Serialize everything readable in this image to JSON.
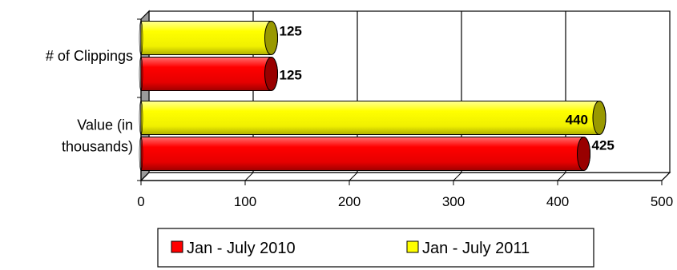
{
  "chart_data": {
    "type": "bar",
    "orientation": "horizontal",
    "categories": [
      "# of Clippings",
      "Value (in thousands)"
    ],
    "category_lines": [
      [
        "# of Clippings"
      ],
      [
        "Value (in",
        "thousands)"
      ]
    ],
    "series": [
      {
        "name": "Jan - July 2010",
        "values": [
          125,
          425
        ],
        "color": "#ff0000",
        "end_color": "#990000"
      },
      {
        "name": "Jan - July 2011",
        "values": [
          125,
          440
        ],
        "color": "#ffff00",
        "end_color": "#999900"
      }
    ],
    "xlim": [
      0,
      500
    ],
    "xticks": [
      0,
      100,
      200,
      300,
      400,
      500
    ],
    "grid": true,
    "legend_position": "bottom",
    "title": "",
    "xlabel": "",
    "ylabel": ""
  }
}
